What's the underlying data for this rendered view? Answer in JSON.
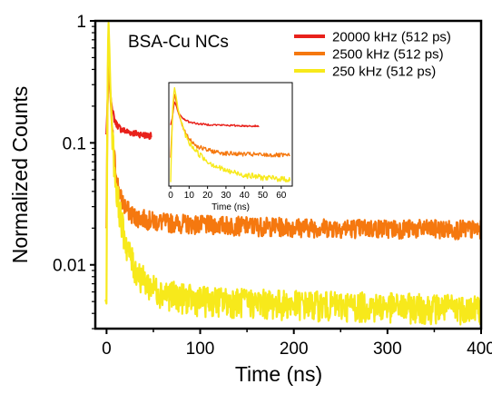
{
  "chart_data": {
    "type": "line",
    "annotation": "BSA-Cu NCs",
    "xlabel": "Time (ns)",
    "ylabel": "Normalized Counts",
    "xlim": [
      -12,
      400
    ],
    "ylim": [
      0.003,
      1
    ],
    "yscale": "log",
    "x_ticks": [
      0,
      100,
      200,
      300,
      400
    ],
    "x_tick_labels": [
      "0",
      "100",
      "200",
      "300",
      "400"
    ],
    "y_ticks": [
      1,
      0.1,
      0.01
    ],
    "y_tick_labels": [
      "1",
      "0.1",
      "0.01"
    ],
    "legend_position": "top-right",
    "grid": false,
    "series": [
      {
        "name": "20000 kHz (512 ps)",
        "color": "#e8211b",
        "x": [
          -1,
          0,
          1,
          2,
          3,
          4,
          6,
          8,
          10,
          15,
          20,
          25,
          30,
          40,
          48
        ],
        "values": [
          0.12,
          0.12,
          0.2,
          0.45,
          0.36,
          0.25,
          0.19,
          0.16,
          0.145,
          0.13,
          0.125,
          0.122,
          0.12,
          0.116,
          0.114
        ]
      },
      {
        "name": "2500 kHz (512 ps)",
        "color": "#f5780f",
        "x": [
          -1,
          0,
          1,
          2,
          3,
          4,
          6,
          8,
          10,
          12,
          15,
          20,
          25,
          30,
          40,
          50,
          60,
          80,
          100,
          150,
          200,
          250,
          300,
          350,
          400
        ],
        "values": [
          0.02,
          0.02,
          0.2,
          0.7,
          0.45,
          0.25,
          0.13,
          0.08,
          0.058,
          0.046,
          0.036,
          0.03,
          0.027,
          0.025,
          0.024,
          0.023,
          0.0225,
          0.022,
          0.0215,
          0.021,
          0.0205,
          0.0202,
          0.02,
          0.0198,
          0.0195
        ]
      },
      {
        "name": "250 kHz (512 ps)",
        "color": "#f7e91b",
        "x": [
          -1,
          0,
          1,
          2,
          3,
          4,
          6,
          8,
          10,
          15,
          20,
          25,
          30,
          40,
          50,
          60,
          80,
          100,
          150,
          200,
          250,
          300,
          350,
          400
        ],
        "values": [
          0.005,
          0.005,
          0.3,
          1.0,
          0.6,
          0.3,
          0.13,
          0.07,
          0.045,
          0.025,
          0.016,
          0.012,
          0.0095,
          0.0075,
          0.0065,
          0.006,
          0.0055,
          0.0052,
          0.005,
          0.0048,
          0.0047,
          0.0046,
          0.0045,
          0.0045
        ]
      }
    ],
    "inset": {
      "type": "line",
      "xlabel": "Time (ns)",
      "xlim": [
        -1,
        66
      ],
      "ylim": [
        0.004,
        1.3
      ],
      "yscale": "log",
      "x_ticks": [
        0,
        10,
        20,
        30,
        40,
        50,
        60
      ],
      "x_tick_labels": [
        "0",
        "10",
        "20",
        "30",
        "40",
        "50",
        "60"
      ],
      "series": [
        {
          "name": "20000 kHz (512 ps)",
          "color": "#e8211b",
          "x": [
            0,
            1,
            2,
            3,
            4,
            6,
            8,
            10,
            15,
            20,
            25,
            30,
            40,
            48
          ],
          "values": [
            0.12,
            0.2,
            0.45,
            0.36,
            0.25,
            0.19,
            0.16,
            0.145,
            0.13,
            0.125,
            0.122,
            0.12,
            0.116,
            0.114
          ]
        },
        {
          "name": "2500 kHz (512 ps)",
          "color": "#f5780f",
          "x": [
            0,
            1,
            2,
            3,
            4,
            6,
            8,
            10,
            12,
            15,
            20,
            25,
            30,
            40,
            50,
            60,
            65
          ],
          "values": [
            0.02,
            0.2,
            0.7,
            0.45,
            0.25,
            0.13,
            0.08,
            0.058,
            0.046,
            0.036,
            0.03,
            0.027,
            0.025,
            0.024,
            0.023,
            0.0225,
            0.022
          ]
        },
        {
          "name": "250 kHz (512 ps)",
          "color": "#f7e91b",
          "x": [
            0,
            1,
            2,
            3,
            4,
            6,
            8,
            10,
            15,
            20,
            25,
            30,
            40,
            50,
            60,
            65
          ],
          "values": [
            0.005,
            0.3,
            1.0,
            0.6,
            0.3,
            0.13,
            0.07,
            0.045,
            0.025,
            0.016,
            0.012,
            0.0095,
            0.0075,
            0.0065,
            0.006,
            0.0058
          ]
        }
      ]
    }
  }
}
